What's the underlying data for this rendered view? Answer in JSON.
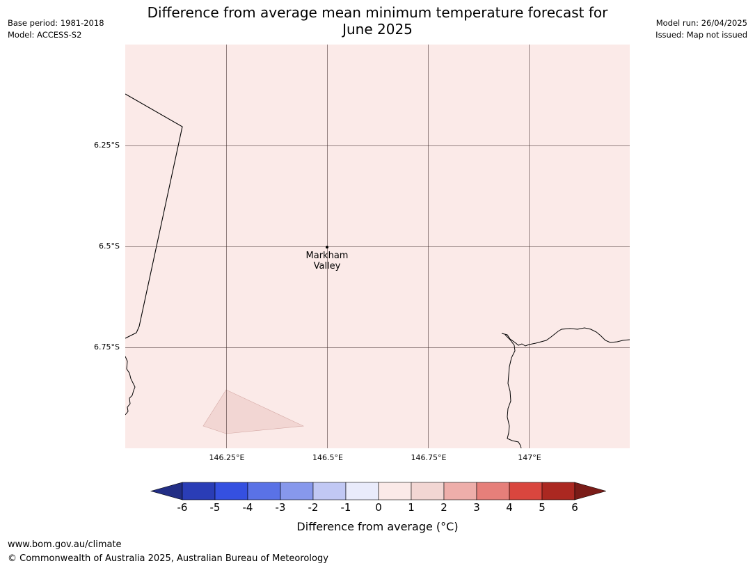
{
  "title_line1": "Difference from average mean minimum temperature forecast for",
  "title_line2": "June 2025",
  "meta_left": {
    "base_period": "Base period: 1981-2018",
    "model": "Model: ACCESS-S2"
  },
  "meta_right": {
    "model_run": "Model run: 26/04/2025",
    "issued": "Issued: Map not issued"
  },
  "map": {
    "lat_labels": [
      "6.25°S",
      "6.5°S",
      "6.75°S"
    ],
    "lon_labels": [
      "146.25°E",
      "146.5°E",
      "146.75°E",
      "147°E"
    ],
    "place": {
      "name_line1": "Markham",
      "name_line2": "Valley"
    },
    "fill_color": "#fbeae8"
  },
  "colorbar": {
    "ticks": [
      "-6",
      "-5",
      "-4",
      "-3",
      "-2",
      "-1",
      "0",
      "1",
      "2",
      "3",
      "4",
      "5",
      "6"
    ],
    "colors": [
      "#222e85",
      "#2a3db6",
      "#3550e0",
      "#5a72e6",
      "#8798ec",
      "#c1c8f4",
      "#e9ebfb",
      "#fbeae8",
      "#f2d6d3",
      "#eeaeaa",
      "#e67f7a",
      "#d9463e",
      "#ab2821",
      "#7a1c18"
    ],
    "label": "Difference from average (°C)"
  },
  "footer": {
    "url": "www.bom.gov.au/climate",
    "copyright": "© Commonwealth of Australia 2025, Australian Bureau of Meteorology"
  }
}
